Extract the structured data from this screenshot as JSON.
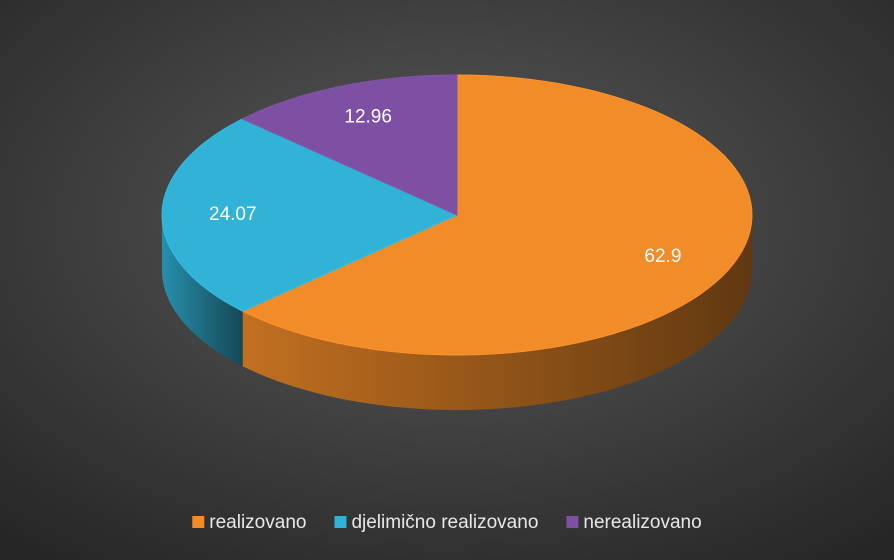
{
  "chart_data": {
    "type": "pie",
    "categories": [
      "realizovano",
      "djelimično realizovano",
      "nerealizovano"
    ],
    "values": [
      62.9,
      24.07,
      12.96
    ],
    "colors": [
      "#f28c28",
      "#31b3d8",
      "#7d50a3"
    ],
    "legend": "bottom"
  }
}
